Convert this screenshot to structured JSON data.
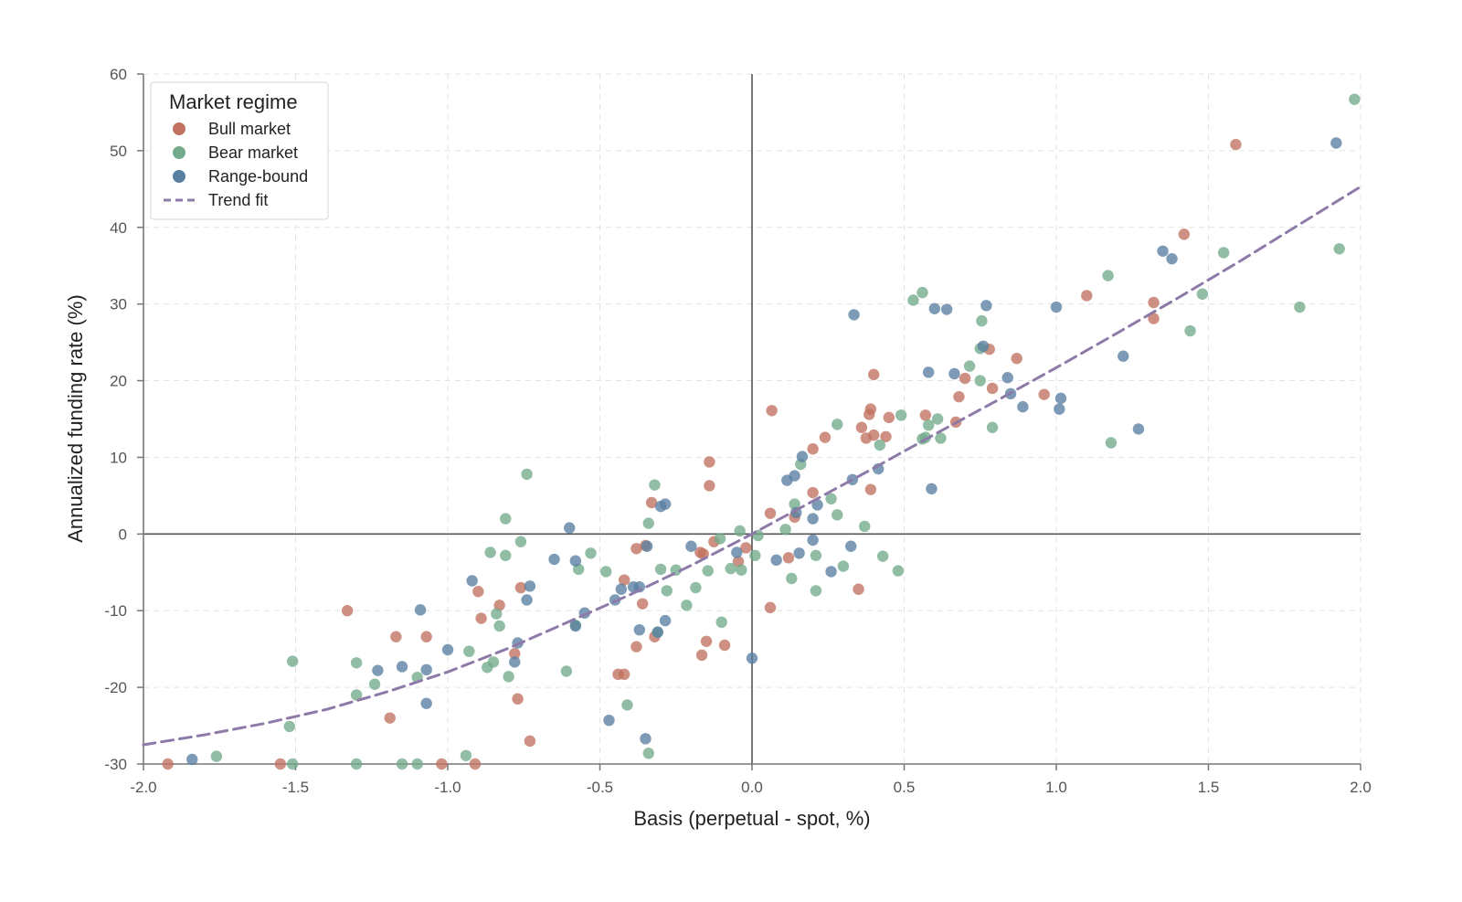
{
  "chart_data": {
    "type": "scatter",
    "title": "",
    "xlabel": "Basis (perpetual - spot, %)",
    "ylabel": "Annualized funding rate (%)",
    "xlim": [
      -2.0,
      2.0
    ],
    "ylim": [
      -30,
      60
    ],
    "x_ticks": [
      "-2.0",
      "-1.5",
      "-1.0",
      "-0.5",
      "0.0",
      "0.5",
      "1.0",
      "1.5",
      "2.0"
    ],
    "y_ticks": [
      "-30",
      "-20",
      "-10",
      "0",
      "10",
      "20",
      "30",
      "40",
      "50",
      "60"
    ],
    "grid": true,
    "legend": {
      "title": "Market regime",
      "position": "top-left"
    },
    "series": [
      {
        "name": "Bull market",
        "color": "#c0715f",
        "points": [
          [
            -1.92,
            -30
          ],
          [
            -1.55,
            -30
          ],
          [
            -1.33,
            -10
          ],
          [
            -1.19,
            -24
          ],
          [
            -1.17,
            -13.4
          ],
          [
            -1.07,
            -13.4
          ],
          [
            -1.02,
            -30
          ],
          [
            -0.91,
            -30
          ],
          [
            -0.9,
            -7.5
          ],
          [
            -0.89,
            -11
          ],
          [
            -0.83,
            -9.3
          ],
          [
            -0.78,
            -15.6
          ],
          [
            -0.77,
            -21.5
          ],
          [
            -0.76,
            -7
          ],
          [
            -0.73,
            -27
          ],
          [
            -0.44,
            -18.3
          ],
          [
            -0.42,
            -18.3
          ],
          [
            -0.42,
            -6
          ],
          [
            -0.38,
            -14.7
          ],
          [
            -0.38,
            -1.9
          ],
          [
            -0.36,
            -9.1
          ],
          [
            -0.35,
            -1.5
          ],
          [
            -0.33,
            4.1
          ],
          [
            -0.32,
            -13.4
          ],
          [
            -0.17,
            -2.4
          ],
          [
            -0.165,
            -15.8
          ],
          [
            -0.16,
            -2.6
          ],
          [
            -0.15,
            -14
          ],
          [
            -0.14,
            9.4
          ],
          [
            -0.14,
            6.3
          ],
          [
            -0.125,
            -1
          ],
          [
            -0.09,
            -14.5
          ],
          [
            -0.045,
            -3.6
          ],
          [
            -0.02,
            -1.8
          ],
          [
            0.06,
            -9.6
          ],
          [
            0.06,
            2.7
          ],
          [
            0.065,
            16.1
          ],
          [
            0.12,
            -3.1
          ],
          [
            0.14,
            2.2
          ],
          [
            0.2,
            11.1
          ],
          [
            0.2,
            5.4
          ],
          [
            0.24,
            12.6
          ],
          [
            0.35,
            -7.2
          ],
          [
            0.36,
            13.9
          ],
          [
            0.375,
            12.5
          ],
          [
            0.385,
            15.6
          ],
          [
            0.39,
            5.8
          ],
          [
            0.39,
            16.3
          ],
          [
            0.4,
            20.8
          ],
          [
            0.4,
            12.9
          ],
          [
            0.44,
            12.7
          ],
          [
            0.45,
            15.2
          ],
          [
            0.57,
            15.5
          ],
          [
            0.67,
            14.6
          ],
          [
            0.68,
            17.9
          ],
          [
            0.7,
            20.3
          ],
          [
            0.78,
            24.1
          ],
          [
            0.79,
            19
          ],
          [
            0.87,
            22.9
          ],
          [
            0.96,
            18.2
          ],
          [
            1.1,
            31.1
          ],
          [
            1.32,
            30.2
          ],
          [
            1.32,
            28.1
          ],
          [
            1.42,
            39.1
          ],
          [
            1.59,
            50.8
          ]
        ]
      },
      {
        "name": "Bear market",
        "color": "#72ab8b",
        "points": [
          [
            -1.76,
            -29
          ],
          [
            -1.52,
            -25.1
          ],
          [
            -1.51,
            -16.6
          ],
          [
            -1.51,
            -30
          ],
          [
            -1.3,
            -21
          ],
          [
            -1.3,
            -16.8
          ],
          [
            -1.3,
            -30
          ],
          [
            -1.24,
            -19.6
          ],
          [
            -1.15,
            -30
          ],
          [
            -1.1,
            -18.7
          ],
          [
            -1.1,
            -30
          ],
          [
            -0.94,
            -28.9
          ],
          [
            -0.93,
            -15.3
          ],
          [
            -0.87,
            -17.4
          ],
          [
            -0.86,
            -2.4
          ],
          [
            -0.85,
            -16.7
          ],
          [
            -0.84,
            -10.4
          ],
          [
            -0.83,
            -12
          ],
          [
            -0.81,
            -2.8
          ],
          [
            -0.81,
            2
          ],
          [
            -0.8,
            -18.6
          ],
          [
            -0.76,
            -1
          ],
          [
            -0.74,
            7.8
          ],
          [
            -0.61,
            -17.9
          ],
          [
            -0.58,
            -11.9
          ],
          [
            -0.57,
            -4.6
          ],
          [
            -0.53,
            -2.5
          ],
          [
            -0.48,
            -4.9
          ],
          [
            -0.41,
            -22.3
          ],
          [
            -0.34,
            -28.6
          ],
          [
            -0.34,
            1.4
          ],
          [
            -0.32,
            6.4
          ],
          [
            -0.31,
            -12.8
          ],
          [
            -0.3,
            -4.6
          ],
          [
            -0.28,
            -7.4
          ],
          [
            -0.25,
            -4.7
          ],
          [
            -0.215,
            -9.3
          ],
          [
            -0.185,
            -7
          ],
          [
            -0.145,
            -4.8
          ],
          [
            -0.105,
            -0.6
          ],
          [
            -0.1,
            -11.5
          ],
          [
            -0.07,
            -4.5
          ],
          [
            -0.04,
            0.4
          ],
          [
            -0.035,
            -4.7
          ],
          [
            0.01,
            -2.8
          ],
          [
            0.02,
            -0.2
          ],
          [
            0.11,
            0.6
          ],
          [
            0.13,
            -5.8
          ],
          [
            0.14,
            3.9
          ],
          [
            0.16,
            9.1
          ],
          [
            0.21,
            -2.8
          ],
          [
            0.21,
            -7.4
          ],
          [
            0.26,
            4.6
          ],
          [
            0.28,
            14.3
          ],
          [
            0.28,
            2.5
          ],
          [
            0.3,
            -4.2
          ],
          [
            0.37,
            1
          ],
          [
            0.42,
            11.6
          ],
          [
            0.43,
            -2.9
          ],
          [
            0.48,
            -4.8
          ],
          [
            0.49,
            15.5
          ],
          [
            0.53,
            30.5
          ],
          [
            0.56,
            31.5
          ],
          [
            0.56,
            12.4
          ],
          [
            0.57,
            12.6
          ],
          [
            0.58,
            14.2
          ],
          [
            0.61,
            15
          ],
          [
            0.62,
            12.5
          ],
          [
            0.715,
            21.9
          ],
          [
            0.75,
            20
          ],
          [
            0.75,
            24.2
          ],
          [
            0.755,
            27.8
          ],
          [
            0.79,
            13.9
          ],
          [
            1.17,
            33.7
          ],
          [
            1.18,
            11.9
          ],
          [
            1.44,
            26.5
          ],
          [
            1.48,
            31.3
          ],
          [
            1.55,
            36.7
          ],
          [
            1.8,
            29.6
          ],
          [
            1.93,
            37.2
          ],
          [
            1.98,
            56.7
          ]
        ]
      },
      {
        "name": "Range-bound",
        "color": "#587fa1",
        "points": [
          [
            -1.84,
            -29.4
          ],
          [
            -1.23,
            -17.8
          ],
          [
            -1.15,
            -17.3
          ],
          [
            -1.09,
            -9.9
          ],
          [
            -1.07,
            -22.1
          ],
          [
            -1.07,
            -17.7
          ],
          [
            -1.0,
            -15.1
          ],
          [
            -0.92,
            -6.1
          ],
          [
            -0.78,
            -16.7
          ],
          [
            -0.77,
            -14.2
          ],
          [
            -0.74,
            -8.6
          ],
          [
            -0.73,
            -6.8
          ],
          [
            -0.65,
            -3.3
          ],
          [
            -0.6,
            0.8
          ],
          [
            -0.58,
            -12
          ],
          [
            -0.58,
            -3.5
          ],
          [
            -0.55,
            -10.3
          ],
          [
            -0.45,
            -8.6
          ],
          [
            -0.47,
            -24.3
          ],
          [
            -0.43,
            -7.2
          ],
          [
            -0.39,
            -6.9
          ],
          [
            -0.37,
            -12.5
          ],
          [
            -0.37,
            -6.9
          ],
          [
            -0.35,
            -26.7
          ],
          [
            -0.345,
            -1.6
          ],
          [
            -0.31,
            -12.8
          ],
          [
            -0.3,
            3.6
          ],
          [
            -0.285,
            3.9
          ],
          [
            -0.285,
            -11.3
          ],
          [
            -0.2,
            -1.6
          ],
          [
            -0.05,
            -2.4
          ],
          [
            0.0,
            -16.2
          ],
          [
            0.08,
            -3.4
          ],
          [
            0.115,
            7
          ],
          [
            0.14,
            7.6
          ],
          [
            0.145,
            2.8
          ],
          [
            0.155,
            -2.5
          ],
          [
            0.165,
            10.1
          ],
          [
            0.2,
            -0.8
          ],
          [
            0.2,
            2
          ],
          [
            0.215,
            3.8
          ],
          [
            0.26,
            -4.9
          ],
          [
            0.325,
            -1.6
          ],
          [
            0.33,
            7.1
          ],
          [
            0.335,
            28.6
          ],
          [
            0.415,
            8.5
          ],
          [
            0.58,
            21.1
          ],
          [
            0.59,
            5.9
          ],
          [
            0.6,
            29.4
          ],
          [
            0.64,
            29.3
          ],
          [
            0.665,
            20.9
          ],
          [
            0.76,
            24.5
          ],
          [
            0.77,
            29.8
          ],
          [
            0.84,
            20.4
          ],
          [
            0.85,
            18.3
          ],
          [
            0.89,
            16.6
          ],
          [
            1.0,
            29.6
          ],
          [
            1.01,
            16.3
          ],
          [
            1.015,
            17.7
          ],
          [
            1.22,
            23.2
          ],
          [
            1.27,
            13.7
          ],
          [
            1.35,
            36.9
          ],
          [
            1.38,
            35.9
          ],
          [
            1.92,
            51
          ]
        ]
      }
    ],
    "trend": {
      "name": "Trend fit",
      "color": "#8e7aa8",
      "x": [
        -2.0,
        -1.8,
        -1.6,
        -1.4,
        -1.2,
        -1.0,
        -0.8,
        -0.6,
        -0.4,
        -0.2,
        0.0,
        0.2,
        0.4,
        0.6,
        0.8,
        1.0,
        1.2,
        1.4,
        1.6,
        1.8,
        2.0
      ],
      "y": [
        -27.5,
        -26.2,
        -24.7,
        -22.9,
        -20.6,
        -18.0,
        -14.9,
        -11.4,
        -7.9,
        -4.1,
        0.0,
        4.3,
        8.6,
        13.0,
        17.3,
        21.7,
        26.2,
        30.8,
        35.5,
        40.4,
        45.3
      ]
    }
  }
}
